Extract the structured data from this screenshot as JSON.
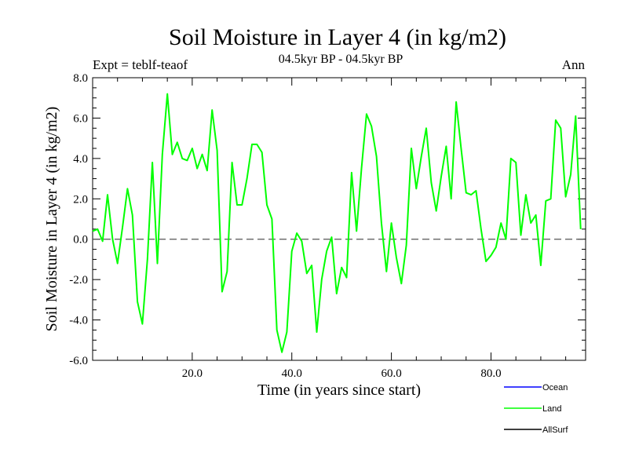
{
  "chart_data": {
    "type": "line",
    "title": "Soil Moisture in Layer 4 (in kg/m2)",
    "subtitle": "04.5kyr BP - 04.5kyr BP",
    "left_note": "Expt = teblf-teaof",
    "right_note": "Ann",
    "xlabel": "Time (in years since start)",
    "ylabel": "Soil Moisture in Layer 4 (in kg/m2)",
    "xlim": [
      0,
      99
    ],
    "ylim": [
      -6,
      8
    ],
    "x_ticks": [
      20,
      40,
      60,
      80
    ],
    "x_tick_labels": [
      "20.0",
      "40.0",
      "60.0",
      "80.0"
    ],
    "y_ticks": [
      -6,
      -4,
      -2,
      0,
      2,
      4,
      6,
      8
    ],
    "y_tick_labels": [
      "-6.0",
      "-4.0",
      "-2.0",
      "0.0",
      "2.0",
      "4.0",
      "6.0",
      "8.0"
    ],
    "zero_line": "dashed",
    "legend_position": "bottom-right",
    "legend": [
      {
        "label": "Ocean",
        "color": "#0000ff"
      },
      {
        "label": "Land",
        "color": "#00ff00"
      },
      {
        "label": "AllSurf",
        "color": "#000000"
      }
    ],
    "series": [
      {
        "name": "Land",
        "color": "#00ff00",
        "x_start": 0,
        "x_step": 1,
        "values": [
          0.4,
          0.5,
          -0.1,
          2.2,
          0.0,
          -1.2,
          0.6,
          2.5,
          1.2,
          -3.1,
          -4.2,
          -1.0,
          3.8,
          -1.2,
          4.2,
          7.2,
          4.2,
          4.8,
          4.0,
          3.9,
          4.5,
          3.5,
          4.2,
          3.4,
          6.4,
          4.4,
          -2.6,
          -1.6,
          3.8,
          1.7,
          1.7,
          3.0,
          4.7,
          4.7,
          4.3,
          1.7,
          1.0,
          -4.5,
          -5.6,
          -4.6,
          -0.6,
          0.3,
          -0.1,
          -1.7,
          -1.3,
          -4.6,
          -2.0,
          -0.6,
          0.1,
          -2.7,
          -1.4,
          -1.9,
          3.3,
          0.4,
          3.5,
          6.2,
          5.6,
          4.1,
          0.8,
          -1.6,
          0.8,
          -0.9,
          -2.2,
          -0.3,
          4.5,
          2.5,
          4.1,
          5.5,
          2.8,
          1.4,
          3.1,
          4.6,
          2.0,
          6.8,
          4.5,
          2.3,
          2.2,
          2.4,
          0.5,
          -1.1,
          -0.8,
          -0.4,
          0.8,
          0.0,
          4.0,
          3.8,
          0.2,
          2.2,
          0.8,
          1.2,
          -1.3,
          1.9,
          2.0,
          5.9,
          5.5,
          2.1,
          3.2,
          6.1,
          0.5
        ]
      }
    ]
  }
}
